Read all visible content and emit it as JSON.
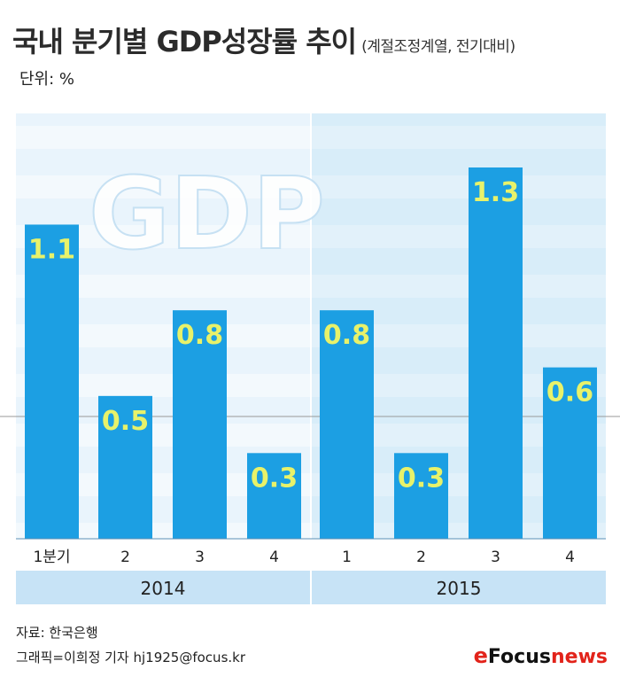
{
  "header": {
    "title": "국내 분기별 GDP성장률 추이",
    "subtitle": "(계절조정계열, 전기대비)",
    "unit": "단위: %"
  },
  "watermark": "GDP",
  "footer": {
    "source": "자료: 한국은행",
    "credit": "그래픽=이희정 기자 hj1925@focus.kr",
    "logo_mark": "e",
    "logo_focus": "Focus",
    "logo_news": "news"
  },
  "colors": {
    "bar": "#1c9fe3",
    "bar_label": "#e8f26a",
    "panel_light": "#e9f4fc",
    "panel_dark": "#d8edf9",
    "axis_band": "#c7e3f6"
  },
  "chart_data": {
    "type": "bar",
    "title": "국내 분기별 GDP성장률 추이",
    "ylabel": "%",
    "ylim": [
      0,
      1.5
    ],
    "groups": [
      {
        "year": "2014",
        "quarters": [
          "1분기",
          "2",
          "3",
          "4"
        ],
        "values": [
          1.1,
          0.5,
          0.8,
          0.3
        ]
      },
      {
        "year": "2015",
        "quarters": [
          "1",
          "2",
          "3",
          "4"
        ],
        "values": [
          0.8,
          0.3,
          1.3,
          0.6
        ]
      }
    ]
  }
}
